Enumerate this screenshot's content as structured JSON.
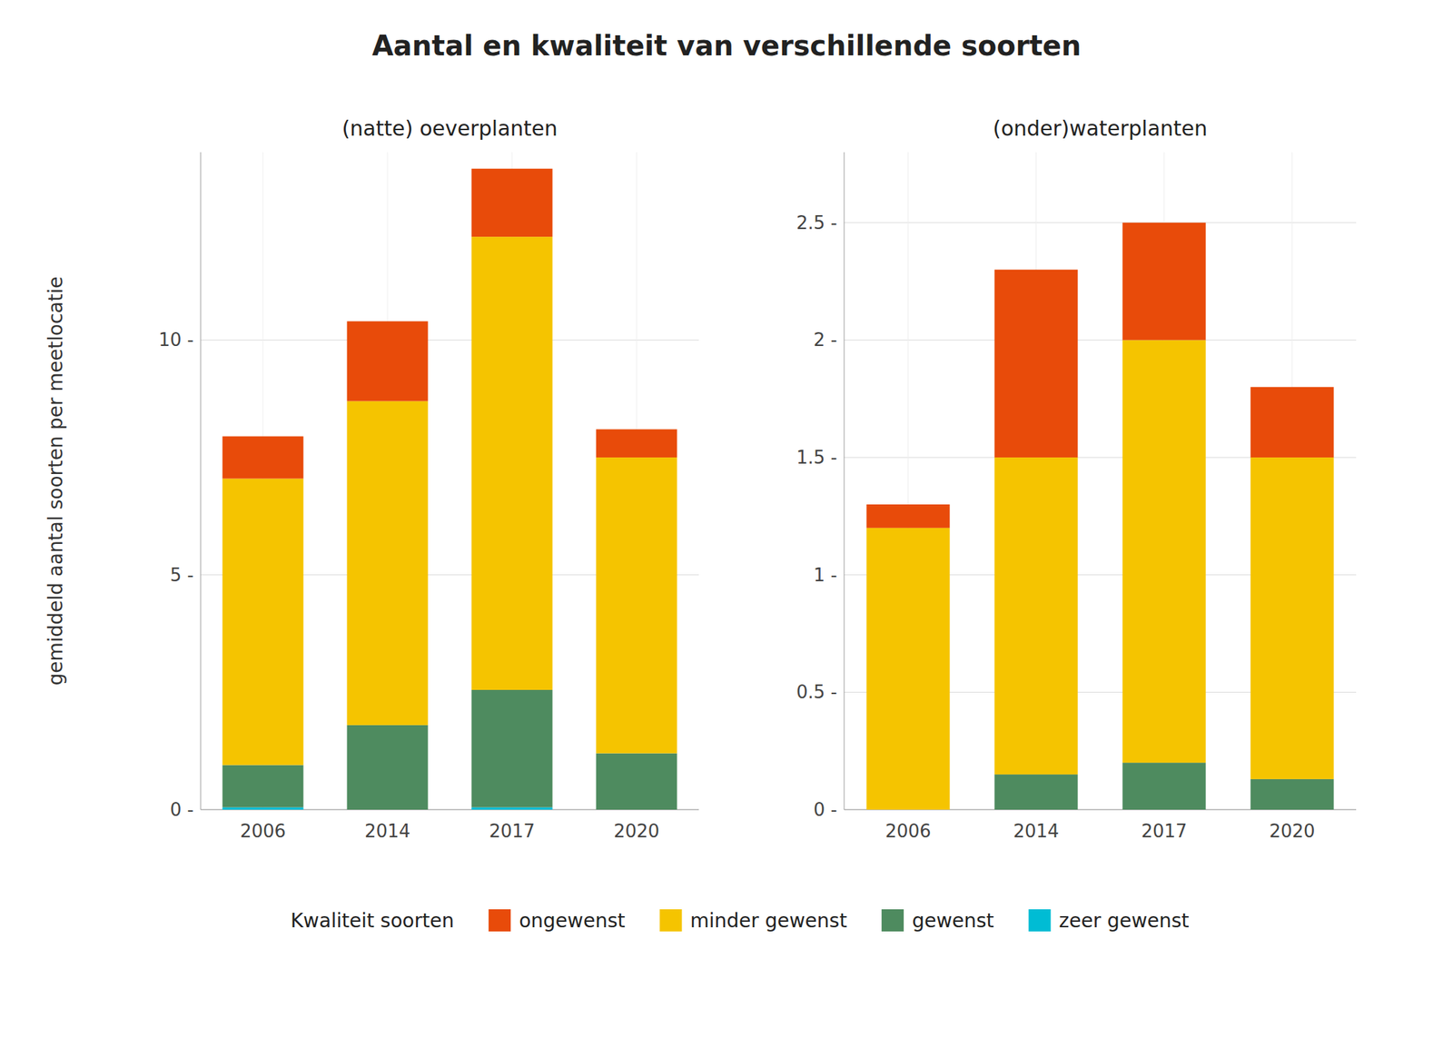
{
  "chart_data": [
    {
      "type": "bar",
      "stacked": true,
      "grid": true,
      "title": "Aantal en kwaliteit van verschillende soorten",
      "subtitle": "(natte) oeverplanten",
      "ylabel": "gemiddeld aantal soorten per meetlocatie",
      "legend_title": "Kwaliteit soorten",
      "categories": [
        "2006",
        "2014",
        "2017",
        "2020"
      ],
      "series": [
        {
          "name": "zeer gewenst",
          "color": "#00BCD4",
          "values": [
            0.05,
            0.0,
            0.05,
            0.0
          ]
        },
        {
          "name": "gewenst",
          "color": "#4E8B5F",
          "values": [
            0.9,
            1.8,
            2.5,
            1.2
          ]
        },
        {
          "name": "minder gewenst",
          "color": "#F5C400",
          "values": [
            6.1,
            6.9,
            9.65,
            6.3
          ]
        },
        {
          "name": "ongewenst",
          "color": "#E84B0A",
          "values": [
            0.9,
            1.7,
            1.45,
            0.6
          ]
        }
      ],
      "ylim": [
        0,
        14
      ],
      "yticks": [
        {
          "value": 0,
          "label": "0 -"
        },
        {
          "value": 5,
          "label": "5 -"
        },
        {
          "value": 10,
          "label": "10 -"
        }
      ]
    },
    {
      "type": "bar",
      "stacked": true,
      "grid": true,
      "subtitle": "(onder)waterplanten",
      "categories": [
        "2006",
        "2014",
        "2017",
        "2020"
      ],
      "series": [
        {
          "color": "#00BCD4",
          "values": [
            0.0,
            0.0,
            0.0,
            0.0
          ]
        },
        {
          "color": "#4E8B5F",
          "values": [
            0.0,
            0.15,
            0.2,
            0.13
          ]
        },
        {
          "color": "#F5C400",
          "values": [
            1.2,
            1.35,
            1.8,
            1.37
          ]
        },
        {
          "color": "#E84B0A",
          "values": [
            0.1,
            0.8,
            0.5,
            0.3
          ]
        }
      ],
      "ylim": [
        0,
        2.8
      ],
      "yticks": [
        {
          "value": 0.0,
          "label": "0 -"
        },
        {
          "value": 0.5,
          "label": "0.5 -"
        },
        {
          "value": 1.0,
          "label": "1 -"
        },
        {
          "value": 1.5,
          "label": "1.5 -"
        },
        {
          "value": 2.0,
          "label": "2 -"
        },
        {
          "value": 2.5,
          "label": "2.5 -"
        }
      ]
    }
  ]
}
